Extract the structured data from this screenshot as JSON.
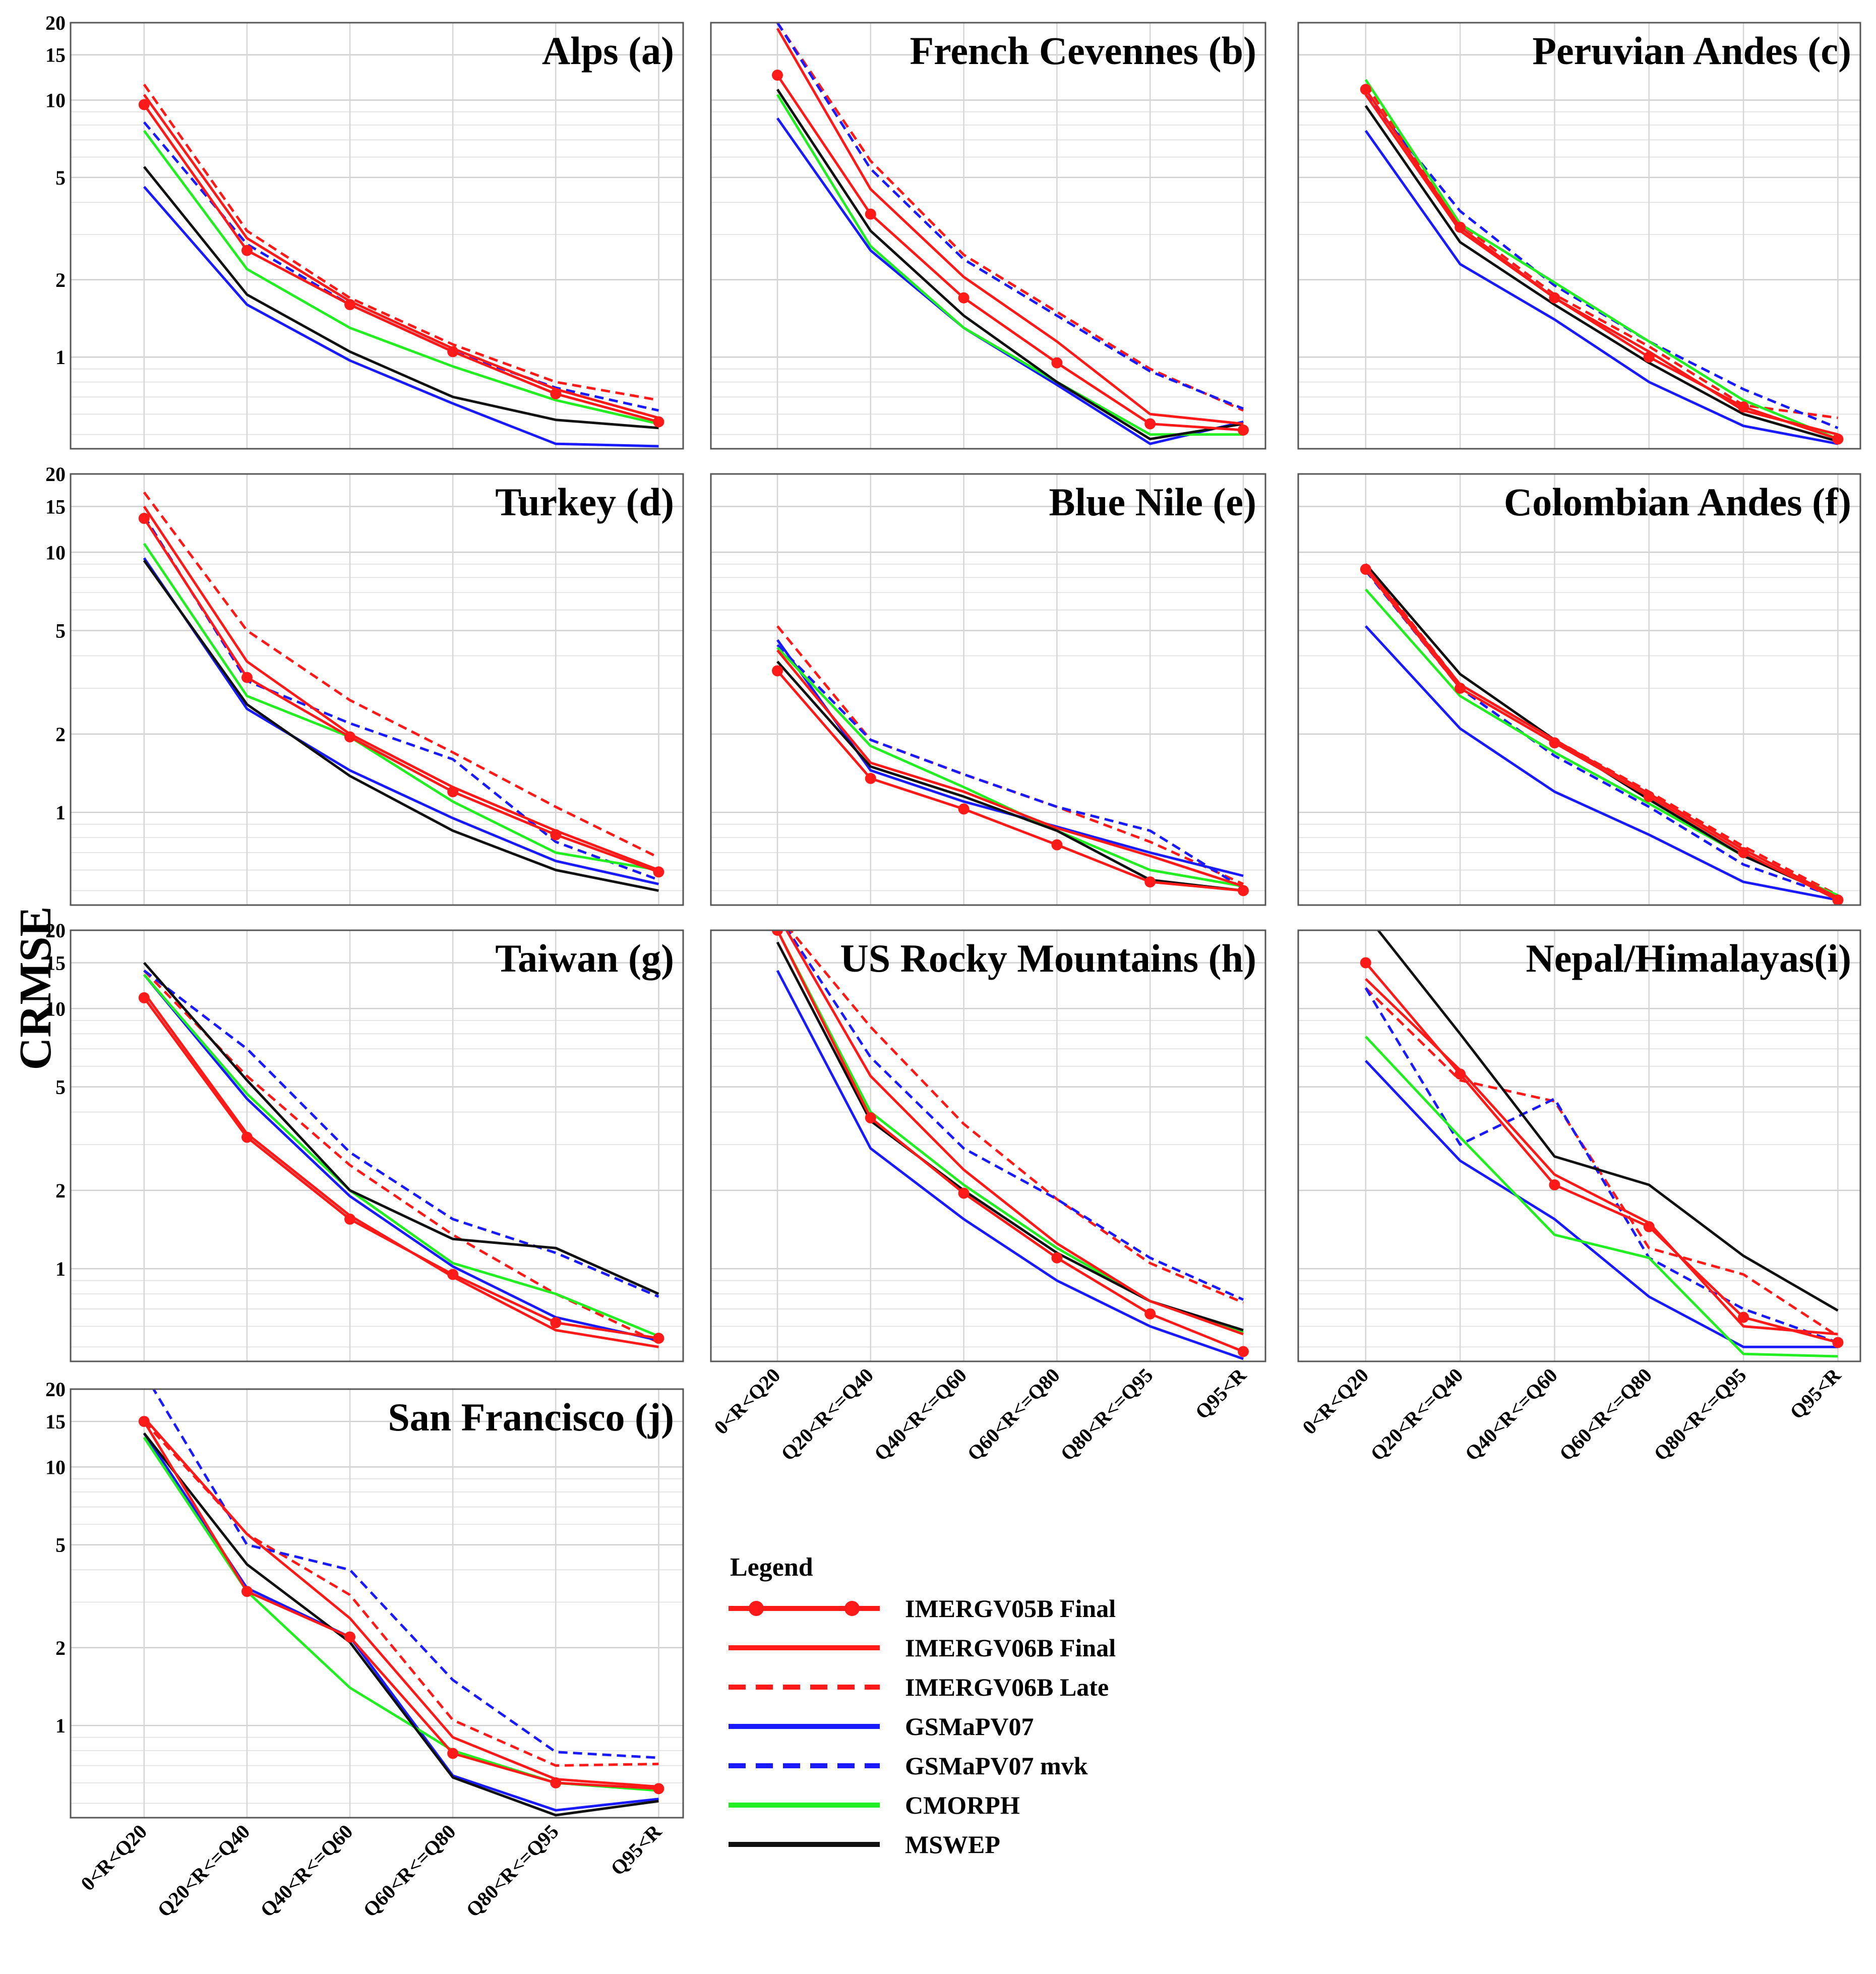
{
  "figure": {
    "ylabel": "CRMSE",
    "yticks": [
      1,
      2,
      5,
      10,
      15,
      20
    ],
    "categories": [
      "0<R<Q20",
      "Q20<R<=Q40",
      "Q40<R<=Q60",
      "Q60<R<=Q80",
      "Q80<R<=Q95",
      "Q95<R"
    ]
  },
  "legend": {
    "title": "Legend",
    "items": [
      {
        "name": "IMERGV05B Final",
        "color": "#ff1a1a",
        "dash": "solid",
        "markers": true
      },
      {
        "name": "IMERGV06B Final",
        "color": "#ff1a1a",
        "dash": "solid",
        "markers": false
      },
      {
        "name": "IMERGV06B Late",
        "color": "#ff1a1a",
        "dash": "dashed",
        "markers": false
      },
      {
        "name": "GSMaPV07",
        "color": "#1a1aff",
        "dash": "solid",
        "markers": false
      },
      {
        "name": "GSMaPV07 mvk",
        "color": "#1a1aff",
        "dash": "dashed",
        "markers": false
      },
      {
        "name": "CMORPH",
        "color": "#22ee22",
        "dash": "solid",
        "markers": false
      },
      {
        "name": "MSWEP",
        "color": "#111111",
        "dash": "solid",
        "markers": false
      }
    ]
  },
  "chart_data": [
    {
      "type": "line",
      "title": "Alps (a)",
      "ylabel": "CRMSE",
      "yscale": "log",
      "ylim": [
        0.44,
        20
      ],
      "categories": [
        "0<R<Q20",
        "Q20<R<=Q40",
        "Q40<R<=Q60",
        "Q60<R<=Q80",
        "Q80<R<=Q95",
        "Q95<R"
      ],
      "series": [
        {
          "name": "IMERGV05B Final",
          "values": [
            9.6,
            2.6,
            1.6,
            1.05,
            0.72,
            0.56
          ]
        },
        {
          "name": "IMERGV06B Final",
          "values": [
            10.5,
            2.9,
            1.65,
            1.08,
            0.75,
            0.58
          ]
        },
        {
          "name": "IMERGV06B Late",
          "values": [
            11.5,
            3.1,
            1.7,
            1.12,
            0.8,
            0.68
          ]
        },
        {
          "name": "GSMaPV07",
          "values": [
            4.6,
            1.6,
            0.97,
            0.66,
            0.46,
            0.45
          ]
        },
        {
          "name": "GSMaPV07 mvk",
          "values": [
            8.2,
            2.75,
            1.6,
            1.05,
            0.76,
            0.62
          ]
        },
        {
          "name": "CMORPH",
          "values": [
            7.6,
            2.2,
            1.3,
            0.92,
            0.68,
            0.55
          ]
        },
        {
          "name": "MSWEP",
          "values": [
            5.5,
            1.75,
            1.05,
            0.7,
            0.57,
            0.53
          ]
        }
      ]
    },
    {
      "type": "line",
      "title": "French Cevennes (b)",
      "ylabel": "CRMSE",
      "yscale": "log",
      "ylim": [
        0.44,
        20
      ],
      "categories": [
        "0<R<Q20",
        "Q20<R<=Q40",
        "Q40<R<=Q60",
        "Q60<R<=Q80",
        "Q80<R<=Q95",
        "Q95<R"
      ],
      "series": [
        {
          "name": "IMERGV05B Final",
          "values": [
            12.5,
            3.6,
            1.7,
            0.95,
            0.55,
            0.52
          ]
        },
        {
          "name": "IMERGV06B Final",
          "values": [
            19,
            4.5,
            2.05,
            1.15,
            0.6,
            0.55
          ]
        },
        {
          "name": "IMERGV06B Late",
          "values": [
            20,
            5.8,
            2.5,
            1.5,
            0.9,
            0.62
          ]
        },
        {
          "name": "GSMaPV07",
          "values": [
            8.5,
            2.6,
            1.3,
            0.78,
            0.46,
            0.56
          ]
        },
        {
          "name": "GSMaPV07 mvk",
          "values": [
            20,
            5.4,
            2.4,
            1.45,
            0.88,
            0.63
          ]
        },
        {
          "name": "CMORPH",
          "values": [
            10.5,
            2.7,
            1.3,
            0.8,
            0.5,
            0.5
          ]
        },
        {
          "name": "MSWEP",
          "values": [
            11,
            3.1,
            1.45,
            0.8,
            0.48,
            0.55
          ]
        }
      ]
    },
    {
      "type": "line",
      "title": "Peruvian Andes (c)",
      "ylabel": "CRMSE",
      "yscale": "log",
      "ylim": [
        0.44,
        20
      ],
      "categories": [
        "0<R<Q20",
        "Q20<R<=Q40",
        "Q40<R<=Q60",
        "Q60<R<=Q80",
        "Q80<R<=Q95",
        "Q95<R"
      ],
      "series": [
        {
          "name": "IMERGV05B Final",
          "values": [
            11,
            3.2,
            1.7,
            1.0,
            0.64,
            0.48
          ]
        },
        {
          "name": "IMERGV06B Final",
          "values": [
            10.5,
            3.1,
            1.7,
            1.05,
            0.62,
            0.5
          ]
        },
        {
          "name": "IMERGV06B Late",
          "values": [
            11.5,
            3.3,
            1.75,
            1.1,
            0.65,
            0.58
          ]
        },
        {
          "name": "GSMaPV07",
          "values": [
            7.6,
            2.3,
            1.4,
            0.8,
            0.54,
            0.46
          ]
        },
        {
          "name": "GSMaPV07 mvk",
          "values": [
            10.5,
            3.7,
            1.9,
            1.15,
            0.75,
            0.53
          ]
        },
        {
          "name": "CMORPH",
          "values": [
            12,
            3.3,
            1.95,
            1.15,
            0.68,
            0.48
          ]
        },
        {
          "name": "MSWEP",
          "values": [
            9.5,
            2.8,
            1.6,
            0.95,
            0.6,
            0.47
          ]
        }
      ]
    },
    {
      "type": "line",
      "title": "Turkey (d)",
      "ylabel": "CRMSE",
      "yscale": "log",
      "ylim": [
        0.44,
        20
      ],
      "categories": [
        "0<R<Q20",
        "Q20<R<=Q40",
        "Q40<R<=Q60",
        "Q60<R<=Q80",
        "Q80<R<=Q95",
        "Q95<R"
      ],
      "series": [
        {
          "name": "IMERGV05B Final",
          "values": [
            13.5,
            3.3,
            1.95,
            1.2,
            0.82,
            0.59
          ]
        },
        {
          "name": "IMERGV06B Final",
          "values": [
            15,
            3.8,
            2.0,
            1.25,
            0.85,
            0.6
          ]
        },
        {
          "name": "IMERGV06B Late",
          "values": [
            17,
            5.0,
            2.7,
            1.7,
            1.05,
            0.67
          ]
        },
        {
          "name": "GSMaPV07",
          "values": [
            9.5,
            2.5,
            1.45,
            0.95,
            0.65,
            0.53
          ]
        },
        {
          "name": "GSMaPV07 mvk",
          "values": [
            13.8,
            3.2,
            2.2,
            1.6,
            0.77,
            0.55
          ]
        },
        {
          "name": "CMORPH",
          "values": [
            10.8,
            2.8,
            1.95,
            1.1,
            0.7,
            0.6
          ]
        },
        {
          "name": "MSWEP",
          "values": [
            9.3,
            2.6,
            1.38,
            0.85,
            0.6,
            0.5
          ]
        }
      ]
    },
    {
      "type": "line",
      "title": "Blue Nile (e)",
      "ylabel": "CRMSE",
      "yscale": "log",
      "ylim": [
        0.44,
        20
      ],
      "categories": [
        "0<R<Q20",
        "Q20<R<=Q40",
        "Q40<R<=Q60",
        "Q60<R<=Q80",
        "Q80<R<=Q95",
        "Q95<R"
      ],
      "series": [
        {
          "name": "IMERGV05B Final",
          "values": [
            3.5,
            1.35,
            1.03,
            0.75,
            0.54,
            0.5
          ]
        },
        {
          "name": "IMERGV06B Final",
          "values": [
            4.2,
            1.55,
            1.2,
            0.87,
            0.68,
            0.52
          ]
        },
        {
          "name": "IMERGV06B Late",
          "values": [
            5.2,
            1.9,
            1.4,
            1.05,
            0.77,
            0.53
          ]
        },
        {
          "name": "GSMaPV07",
          "values": [
            4.6,
            1.45,
            1.1,
            0.88,
            0.7,
            0.57
          ]
        },
        {
          "name": "GSMaPV07 mvk",
          "values": [
            4.4,
            1.9,
            1.4,
            1.05,
            0.85,
            0.51
          ]
        },
        {
          "name": "CMORPH",
          "values": [
            4.3,
            1.8,
            1.25,
            0.85,
            0.6,
            0.52
          ]
        },
        {
          "name": "MSWEP",
          "values": [
            3.8,
            1.5,
            1.15,
            0.85,
            0.55,
            0.5
          ]
        }
      ]
    },
    {
      "type": "line",
      "title": "Colombian Andes (f)",
      "ylabel": "CRMSE",
      "yscale": "log",
      "ylim": [
        0.44,
        20
      ],
      "categories": [
        "0<R<Q20",
        "Q20<R<=Q40",
        "Q40<R<=Q60",
        "Q60<R<=Q80",
        "Q80<R<=Q95",
        "Q95<R"
      ],
      "series": [
        {
          "name": "IMERGV05B Final",
          "values": [
            8.6,
            3.0,
            1.85,
            1.15,
            0.7,
            0.46
          ]
        },
        {
          "name": "IMERGV06B Final",
          "values": [
            8.8,
            3.1,
            1.9,
            1.18,
            0.72,
            0.47
          ]
        },
        {
          "name": "IMERGV06B Late",
          "values": [
            9,
            3.1,
            1.9,
            1.2,
            0.74,
            0.48
          ]
        },
        {
          "name": "GSMaPV07",
          "values": [
            5.2,
            2.1,
            1.2,
            0.82,
            0.54,
            0.46
          ]
        },
        {
          "name": "GSMaPV07 mvk",
          "values": [
            8.5,
            3.0,
            1.65,
            1.05,
            0.63,
            0.47
          ]
        },
        {
          "name": "CMORPH",
          "values": [
            7.2,
            2.8,
            1.7,
            1.08,
            0.68,
            0.48
          ]
        },
        {
          "name": "MSWEP",
          "values": [
            9.0,
            3.4,
            1.9,
            1.12,
            0.68,
            0.47
          ]
        }
      ]
    },
    {
      "type": "line",
      "title": "Taiwan (g)",
      "ylabel": "CRMSE",
      "yscale": "log",
      "ylim": [
        0.44,
        20
      ],
      "categories": [
        "0<R<Q20",
        "Q20<R<=Q40",
        "Q40<R<=Q60",
        "Q60<R<=Q80",
        "Q80<R<=Q95",
        "Q95<R"
      ],
      "series": [
        {
          "name": "IMERGV05B Final",
          "values": [
            11,
            3.2,
            1.55,
            0.95,
            0.62,
            0.54
          ]
        },
        {
          "name": "IMERGV06B Final",
          "values": [
            11.5,
            3.3,
            1.6,
            0.93,
            0.58,
            0.5
          ]
        },
        {
          "name": "IMERGV06B Late",
          "values": [
            14,
            5.5,
            2.5,
            1.35,
            0.8,
            0.52
          ]
        },
        {
          "name": "GSMaPV07",
          "values": [
            13.5,
            4.5,
            1.9,
            1.02,
            0.65,
            0.53
          ]
        },
        {
          "name": "GSMaPV07 mvk",
          "values": [
            14,
            7,
            2.8,
            1.55,
            1.15,
            0.78
          ]
        },
        {
          "name": "CMORPH",
          "values": [
            13.5,
            4.7,
            2.0,
            1.05,
            0.8,
            0.55
          ]
        },
        {
          "name": "MSWEP",
          "values": [
            15,
            5.3,
            2.0,
            1.3,
            1.2,
            0.8
          ]
        }
      ]
    },
    {
      "type": "line",
      "title": "US Rocky Mountains (h)",
      "ylabel": "CRMSE",
      "yscale": "log",
      "ylim": [
        0.44,
        20
      ],
      "categories": [
        "0<R<Q20",
        "Q20<R<=Q40",
        "Q40<R<=Q60",
        "Q60<R<=Q80",
        "Q80<R<=Q95",
        "Q95<R"
      ],
      "series": [
        {
          "name": "IMERGV05B Final",
          "values": [
            20,
            3.8,
            1.95,
            1.1,
            0.67,
            0.48
          ]
        },
        {
          "name": "IMERGV06B Final",
          "values": [
            23,
            5.5,
            2.4,
            1.25,
            0.75,
            0.56
          ]
        },
        {
          "name": "IMERGV06B Late",
          "values": [
            23,
            8.5,
            3.6,
            1.85,
            1.05,
            0.74
          ]
        },
        {
          "name": "GSMaPV07",
          "values": [
            14,
            2.9,
            1.55,
            0.9,
            0.6,
            0.45
          ]
        },
        {
          "name": "GSMaPV07 mvk",
          "values": [
            23,
            6.5,
            2.9,
            1.85,
            1.1,
            0.76
          ]
        },
        {
          "name": "CMORPH",
          "values": [
            20,
            4.0,
            2.1,
            1.2,
            0.75,
            0.57
          ]
        },
        {
          "name": "MSWEP",
          "values": [
            18,
            3.7,
            2.0,
            1.15,
            0.75,
            0.58
          ]
        }
      ]
    },
    {
      "type": "line",
      "title": "Nepal/Himalayas(i)",
      "ylabel": "CRMSE",
      "yscale": "log",
      "ylim": [
        0.44,
        20
      ],
      "categories": [
        "0<R<Q20",
        "Q20<R<=Q40",
        "Q40<R<=Q60",
        "Q60<R<=Q80",
        "Q80<R<=Q95",
        "Q95<R"
      ],
      "series": [
        {
          "name": "IMERGV05B Final",
          "values": [
            15,
            5.6,
            2.1,
            1.45,
            0.65,
            0.52
          ]
        },
        {
          "name": "IMERGV06B Final",
          "values": [
            13,
            5.8,
            2.3,
            1.5,
            0.6,
            0.56
          ]
        },
        {
          "name": "IMERGV06B Late",
          "values": [
            12,
            5.3,
            4.4,
            1.2,
            0.95,
            0.55
          ]
        },
        {
          "name": "GSMaPV07",
          "values": [
            6.3,
            2.6,
            1.55,
            0.78,
            0.5,
            0.5
          ]
        },
        {
          "name": "GSMaPV07 mvk",
          "values": [
            12,
            3.0,
            4.5,
            1.1,
            0.7,
            0.52
          ]
        },
        {
          "name": "CMORPH",
          "values": [
            7.8,
            3.2,
            1.35,
            1.1,
            0.47,
            0.46
          ]
        },
        {
          "name": "MSWEP",
          "values": [
            23,
            8,
            2.7,
            2.1,
            1.12,
            0.69
          ]
        }
      ]
    },
    {
      "type": "line",
      "title": "San Francisco  (j)",
      "ylabel": "CRMSE",
      "yscale": "log",
      "ylim": [
        0.44,
        20
      ],
      "categories": [
        "0<R<Q20",
        "Q20<R<=Q40",
        "Q40<R<=Q60",
        "Q60<R<=Q80",
        "Q80<R<=Q95",
        "Q95<R"
      ],
      "series": [
        {
          "name": "IMERGV05B Final",
          "values": [
            15,
            3.3,
            2.2,
            0.78,
            0.6,
            0.57
          ]
        },
        {
          "name": "IMERGV06B Final",
          "values": [
            15.5,
            5.5,
            2.6,
            0.9,
            0.62,
            0.58
          ]
        },
        {
          "name": "IMERGV06B Late",
          "values": [
            15,
            5.5,
            3.2,
            1.05,
            0.7,
            0.71
          ]
        },
        {
          "name": "GSMaPV07",
          "values": [
            13.5,
            3.4,
            2.2,
            0.64,
            0.47,
            0.52
          ]
        },
        {
          "name": "GSMaPV07 mvk",
          "values": [
            23,
            5.0,
            4.0,
            1.5,
            0.79,
            0.75
          ]
        },
        {
          "name": "CMORPH",
          "values": [
            13,
            3.3,
            1.4,
            0.8,
            0.6,
            0.56
          ]
        },
        {
          "name": "MSWEP",
          "values": [
            13.5,
            4.2,
            2.1,
            0.63,
            0.45,
            0.51
          ]
        }
      ]
    }
  ]
}
